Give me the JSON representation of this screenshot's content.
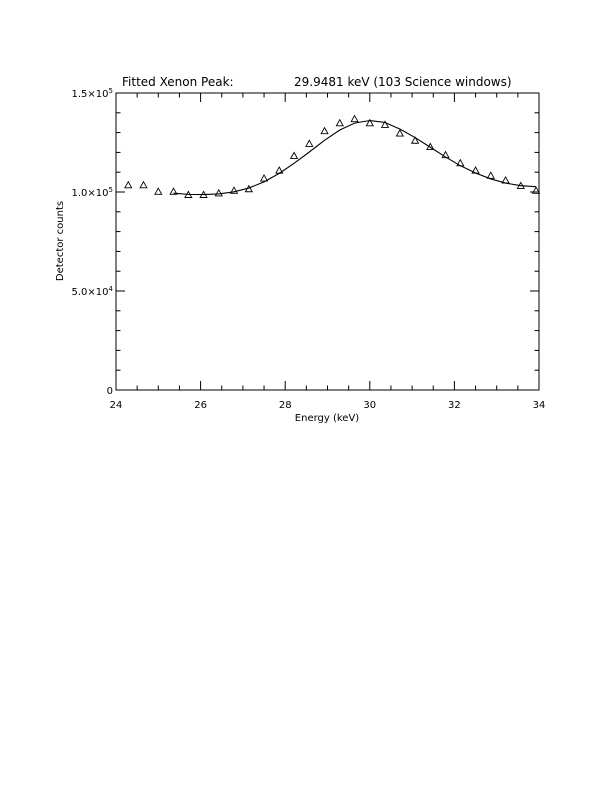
{
  "chart_data": {
    "type": "scatter",
    "title_left": "Fitted Xenon Peak:",
    "title_right": "29.9481 keV (103 Science windows)",
    "xlabel": "Energy (keV)",
    "ylabel": "Detector counts",
    "xlim": [
      24,
      34
    ],
    "ylim": [
      0,
      150000
    ],
    "x_ticks": [
      {
        "value": 24,
        "label": "24"
      },
      {
        "value": 26,
        "label": "26"
      },
      {
        "value": 28,
        "label": "28"
      },
      {
        "value": 30,
        "label": "30"
      },
      {
        "value": 32,
        "label": "32"
      },
      {
        "value": 34,
        "label": "34"
      }
    ],
    "x_minor_step": 0.5,
    "y_ticks": [
      {
        "value": 0,
        "mant": "0",
        "exp": ""
      },
      {
        "value": 50000,
        "mant": "5.0×10",
        "exp": "4"
      },
      {
        "value": 100000,
        "mant": "1.0×10",
        "exp": "5"
      },
      {
        "value": 150000,
        "mant": "1.5×10",
        "exp": "5"
      }
    ],
    "y_minor_step": 10000,
    "grid": false,
    "series": [
      {
        "marker": "triangle",
        "x": [
          24.29,
          24.65,
          25.0,
          25.36,
          25.71,
          26.07,
          26.43,
          26.79,
          27.14,
          27.5,
          27.86,
          28.21,
          28.57,
          28.93,
          29.29,
          29.64,
          30.0,
          30.36,
          30.71,
          31.07,
          31.43,
          31.79,
          32.14,
          32.5,
          32.86,
          33.21,
          33.57,
          33.93
        ],
        "y": [
          103500,
          103500,
          100200,
          100200,
          98600,
          98600,
          99400,
          100700,
          101500,
          106900,
          110900,
          118300,
          124400,
          130800,
          134800,
          136900,
          134800,
          134000,
          129600,
          126000,
          122800,
          118700,
          114600,
          110900,
          108300,
          105900,
          103100,
          100700
        ]
      },
      {
        "type": "line",
        "x": [
          25.36,
          25.71,
          26.07,
          26.43,
          26.79,
          27.14,
          27.5,
          27.86,
          28.21,
          28.57,
          28.93,
          29.29,
          29.64,
          30.0,
          30.36,
          30.71,
          31.07,
          31.43,
          31.79,
          32.14,
          32.5,
          32.86,
          33.21,
          33.57,
          33.93
        ],
        "y": [
          99400,
          98800,
          98700,
          99000,
          100100,
          102000,
          105100,
          109400,
          114500,
          120200,
          126100,
          131300,
          134800,
          136100,
          135100,
          131800,
          127500,
          122600,
          117700,
          113300,
          109600,
          106600,
          104500,
          103200,
          102700
        ]
      }
    ]
  }
}
